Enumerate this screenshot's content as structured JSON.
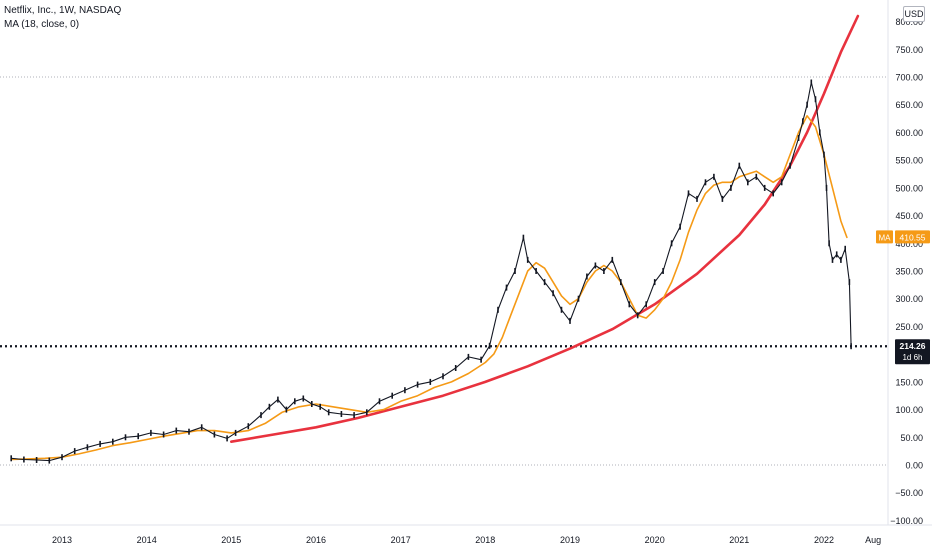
{
  "legend": {
    "symbol_line": "Netflix, Inc., 1W, NASDAQ",
    "ma_line": "MA (18, close, 0)"
  },
  "currency": "USD",
  "colors": {
    "price": "#131722",
    "ma": "#f59a16",
    "trendline": "#e8323e",
    "price_tag_bg": "#131722",
    "ma_tag_bg": "#f59a16",
    "grid_dotted": "#9598a1",
    "axis_text": "#131722"
  },
  "chart_data": {
    "type": "line",
    "title": "Netflix, Inc., 1W, NASDAQ",
    "xlabel": "",
    "ylabel": "",
    "ylim": [
      -100,
      800
    ],
    "y_ticks": [
      -100,
      -50,
      0,
      50,
      100,
      150,
      200,
      250,
      300,
      350,
      400,
      450,
      500,
      550,
      600,
      650,
      700,
      750,
      800
    ],
    "y_tick_labels": [
      "−100.00",
      "−50.00",
      "0.00",
      "50.00",
      "100.00",
      "150.00",
      "200.00",
      "250.00",
      "300.00",
      "350.00",
      "400.00",
      "450.00",
      "500.00",
      "550.00",
      "600.00",
      "650.00",
      "700.00",
      "750.00",
      "800.00"
    ],
    "x_ticks": [
      2013,
      2014,
      2015,
      2016,
      2017,
      2018,
      2019,
      2020,
      2021,
      2022,
      2022.58
    ],
    "x_tick_labels": [
      "2013",
      "2014",
      "2015",
      "2016",
      "2017",
      "2018",
      "2019",
      "2020",
      "2021",
      "2022",
      "Aug"
    ],
    "series": [
      {
        "name": "Netflix, Inc.",
        "style": "price",
        "x": [
          2012.4,
          2012.55,
          2012.7,
          2012.85,
          2013.0,
          2013.15,
          2013.3,
          2013.45,
          2013.6,
          2013.75,
          2013.9,
          2014.05,
          2014.2,
          2014.35,
          2014.5,
          2014.65,
          2014.8,
          2014.95,
          2015.05,
          2015.2,
          2015.35,
          2015.45,
          2015.55,
          2015.65,
          2015.75,
          2015.85,
          2015.95,
          2016.05,
          2016.15,
          2016.3,
          2016.45,
          2016.6,
          2016.75,
          2016.9,
          2017.05,
          2017.2,
          2017.35,
          2017.5,
          2017.65,
          2017.8,
          2017.95,
          2018.05,
          2018.15,
          2018.25,
          2018.35,
          2018.45,
          2018.5,
          2018.6,
          2018.7,
          2018.8,
          2018.9,
          2019.0,
          2019.1,
          2019.2,
          2019.3,
          2019.4,
          2019.5,
          2019.6,
          2019.7,
          2019.8,
          2019.9,
          2020.0,
          2020.1,
          2020.2,
          2020.3,
          2020.4,
          2020.5,
          2020.6,
          2020.7,
          2020.8,
          2020.9,
          2021.0,
          2021.1,
          2021.2,
          2021.3,
          2021.4,
          2021.5,
          2021.6,
          2021.7,
          2021.75,
          2021.8,
          2021.85,
          2021.9,
          2021.95,
          2022.0,
          2022.03,
          2022.06,
          2022.1,
          2022.15,
          2022.2,
          2022.25,
          2022.3,
          2022.32
        ],
        "y": [
          12,
          10,
          9,
          8,
          14,
          25,
          32,
          38,
          42,
          50,
          52,
          58,
          55,
          62,
          60,
          68,
          55,
          48,
          58,
          70,
          90,
          105,
          118,
          100,
          115,
          120,
          110,
          105,
          95,
          92,
          90,
          95,
          115,
          125,
          135,
          145,
          150,
          160,
          175,
          195,
          190,
          215,
          280,
          320,
          350,
          410,
          370,
          350,
          330,
          310,
          280,
          260,
          300,
          340,
          360,
          350,
          370,
          330,
          290,
          270,
          290,
          330,
          350,
          400,
          430,
          490,
          480,
          510,
          520,
          480,
          500,
          540,
          510,
          520,
          500,
          490,
          510,
          540,
          590,
          620,
          650,
          690,
          660,
          600,
          560,
          500,
          400,
          370,
          380,
          370,
          390,
          330,
          214.26
        ]
      },
      {
        "name": "MA",
        "style": "ma",
        "x": [
          2012.4,
          2012.6,
          2012.8,
          2013.0,
          2013.2,
          2013.4,
          2013.6,
          2013.8,
          2014.0,
          2014.2,
          2014.4,
          2014.6,
          2014.8,
          2015.0,
          2015.2,
          2015.4,
          2015.6,
          2015.8,
          2016.0,
          2016.2,
          2016.4,
          2016.6,
          2016.8,
          2017.0,
          2017.2,
          2017.4,
          2017.6,
          2017.8,
          2018.0,
          2018.1,
          2018.2,
          2018.3,
          2018.4,
          2018.5,
          2018.6,
          2018.7,
          2018.8,
          2018.9,
          2019.0,
          2019.1,
          2019.2,
          2019.3,
          2019.4,
          2019.5,
          2019.6,
          2019.7,
          2019.8,
          2019.9,
          2020.0,
          2020.1,
          2020.2,
          2020.3,
          2020.4,
          2020.5,
          2020.6,
          2020.7,
          2020.8,
          2020.9,
          2021.0,
          2021.1,
          2021.2,
          2021.3,
          2021.4,
          2021.5,
          2021.6,
          2021.7,
          2021.8,
          2021.9,
          2022.0,
          2022.1,
          2022.2,
          2022.27
        ],
        "y": [
          10,
          11,
          12,
          14,
          20,
          27,
          35,
          40,
          46,
          52,
          57,
          62,
          62,
          58,
          62,
          75,
          95,
          105,
          110,
          105,
          100,
          95,
          100,
          115,
          125,
          140,
          150,
          165,
          185,
          200,
          230,
          270,
          310,
          350,
          365,
          355,
          330,
          305,
          290,
          300,
          330,
          350,
          360,
          350,
          330,
          300,
          270,
          265,
          280,
          300,
          330,
          370,
          420,
          460,
          490,
          505,
          510,
          510,
          520,
          525,
          530,
          520,
          510,
          520,
          560,
          600,
          630,
          610,
          560,
          500,
          440,
          410.55
        ]
      },
      {
        "name": "Trend",
        "style": "trend",
        "x": [
          2015.0,
          2015.5,
          2016.0,
          2016.5,
          2017.0,
          2017.5,
          2018.0,
          2018.5,
          2019.0,
          2019.5,
          2020.0,
          2020.5,
          2021.0,
          2021.3,
          2021.6,
          2021.8,
          2022.0,
          2022.2,
          2022.4
        ],
        "y": [
          42,
          55,
          68,
          85,
          105,
          125,
          150,
          178,
          210,
          245,
          290,
          345,
          415,
          470,
          540,
          600,
          670,
          745,
          810
        ]
      }
    ],
    "last_price": {
      "value": "214.26",
      "label": "214.26",
      "sublabel": "1d 6h"
    },
    "ma_last": {
      "tag": "MA",
      "value": "410.55"
    },
    "reference_lines": [
      700,
      214.26,
      0
    ],
    "grid": false,
    "legend_position": "top-left"
  }
}
